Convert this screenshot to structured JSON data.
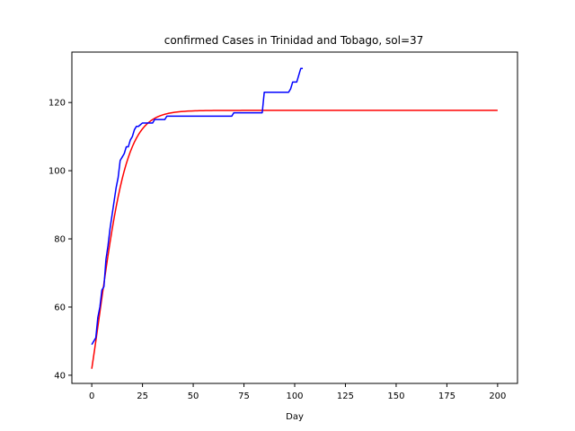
{
  "chart_data": {
    "type": "line",
    "title": "confirmed Cases in Trinidad and Tobago, sol=37",
    "xlabel": "Day",
    "ylabel": "",
    "xlim": [
      -9.8,
      209.8
    ],
    "ylim": [
      37.6,
      134.8
    ],
    "xticks": [
      0,
      25,
      50,
      75,
      100,
      125,
      150,
      175,
      200
    ],
    "yticks": [
      40,
      60,
      80,
      100,
      120
    ],
    "grid": false,
    "series": [
      {
        "color": "#ff0000",
        "model": "logistic",
        "params": {
          "K": 117.7,
          "r": 0.145,
          "y0": 41.9
        },
        "x_range": [
          0,
          200
        ]
      },
      {
        "color": "#0000ff",
        "x": [
          0,
          1,
          2,
          3,
          4,
          5,
          6,
          7,
          8,
          9,
          10,
          11,
          12,
          13,
          14,
          15,
          16,
          17,
          18,
          19,
          20,
          21,
          22,
          23,
          25,
          26,
          27,
          28,
          29,
          30,
          31,
          32,
          33,
          34,
          35,
          36,
          37,
          38,
          40,
          45,
          50,
          55,
          60,
          65,
          69,
          70,
          71,
          72,
          75,
          80,
          84,
          85,
          86,
          87,
          90,
          95,
          97,
          98,
          99,
          100,
          101,
          102,
          103,
          104
        ],
        "values": [
          49,
          50,
          51,
          57,
          60,
          65,
          66,
          74,
          78,
          83,
          87,
          91,
          95,
          98,
          103,
          104,
          105,
          107,
          107,
          109,
          110,
          112,
          113,
          113,
          114,
          114,
          114,
          114,
          114,
          114,
          115,
          115,
          115,
          115,
          115,
          115,
          116,
          116,
          116,
          116,
          116,
          116,
          116,
          116,
          116,
          117,
          117,
          117,
          117,
          117,
          117,
          123,
          123,
          123,
          123,
          123,
          123,
          124,
          126,
          126,
          126,
          128,
          130,
          130
        ]
      }
    ]
  }
}
